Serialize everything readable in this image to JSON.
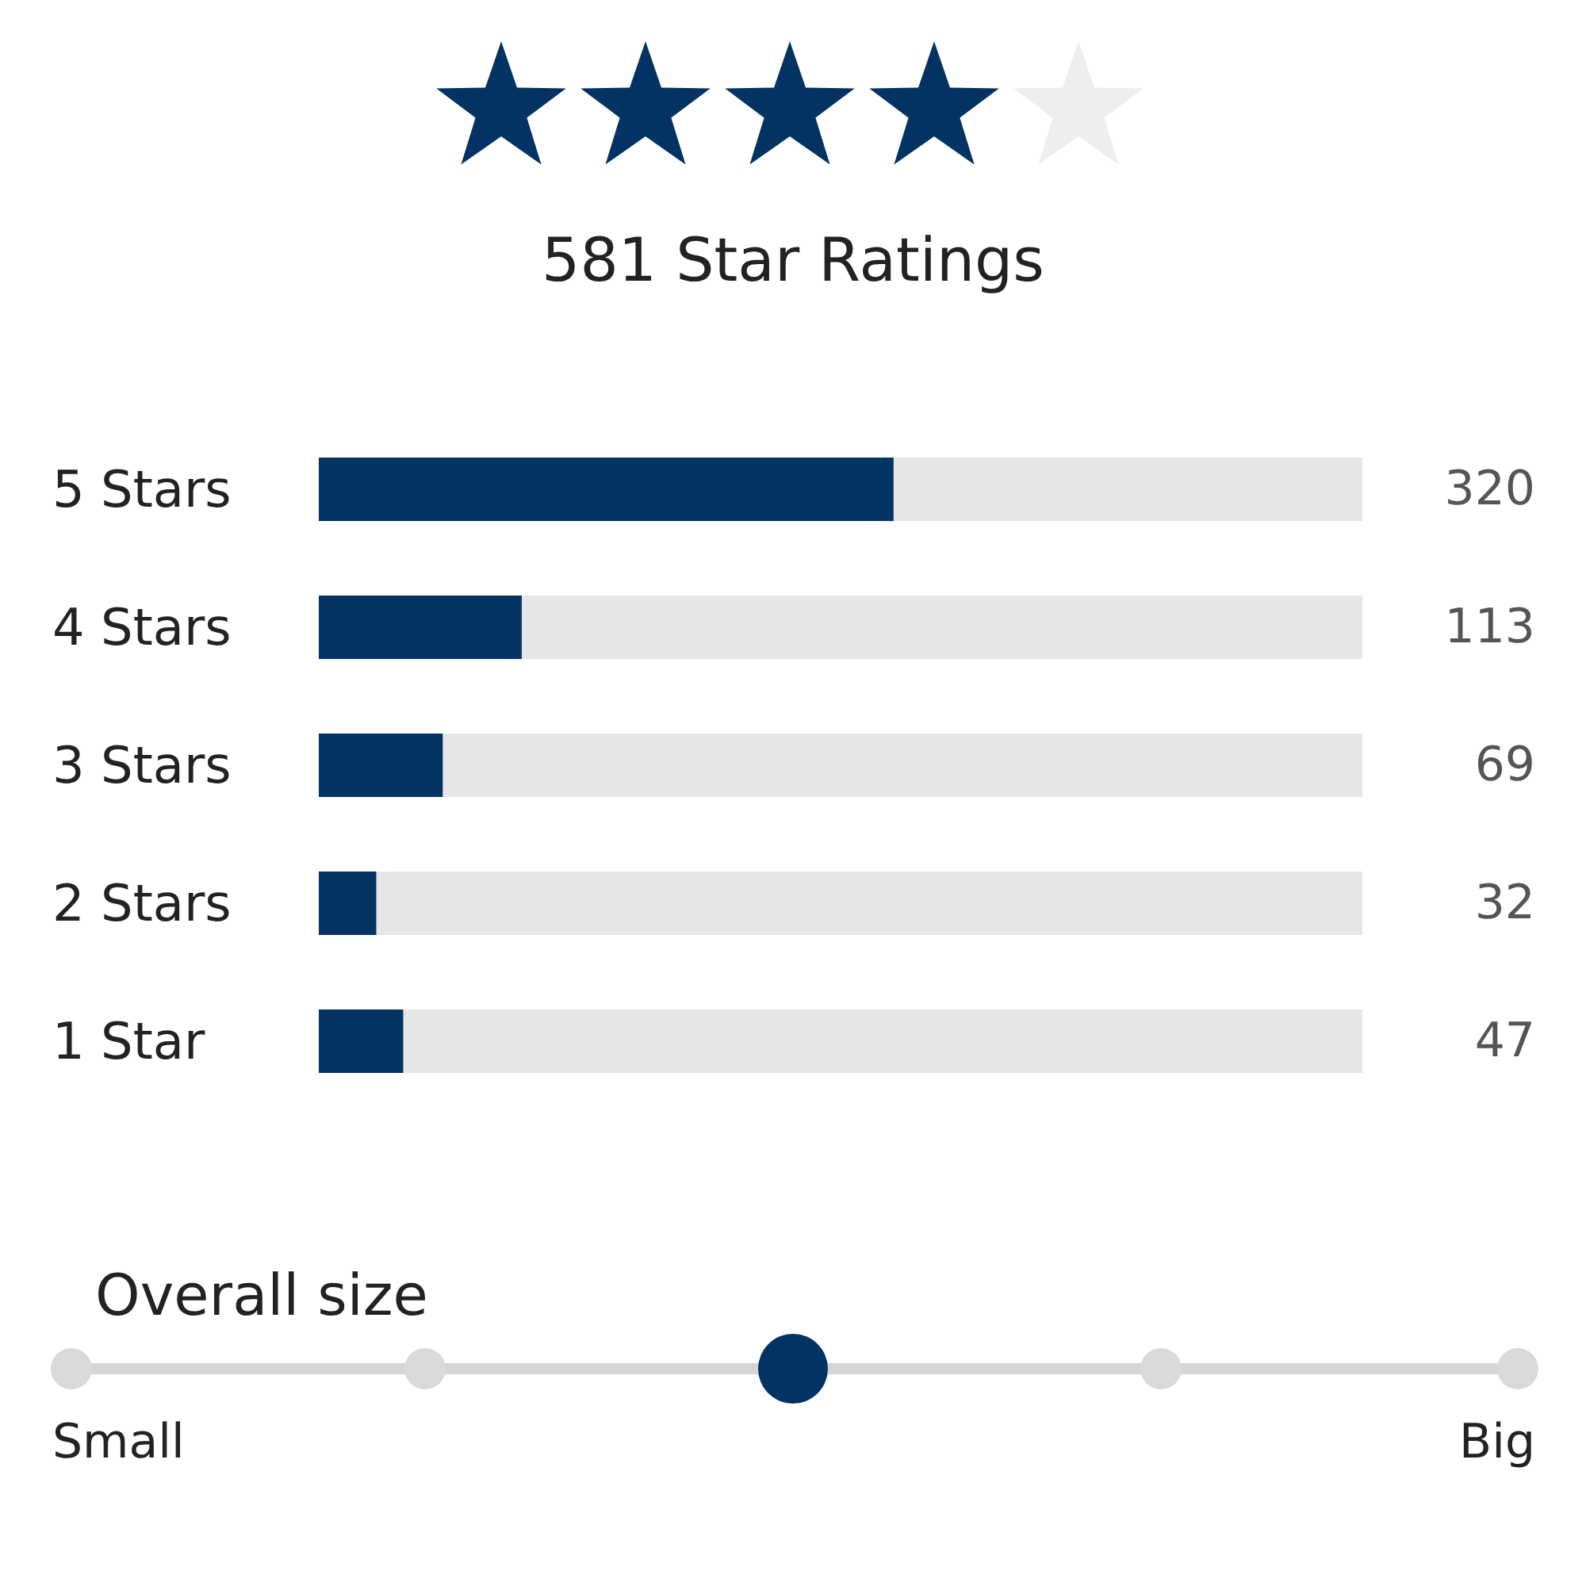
{
  "chart_data": {
    "type": "bar",
    "orientation": "horizontal",
    "title": "581 Star Ratings",
    "categories": [
      "5 Stars",
      "4 Stars",
      "3 Stars",
      "2 Stars",
      "1 Star"
    ],
    "values": [
      320,
      113,
      69,
      32,
      47
    ],
    "color": "#033363",
    "xlim": [
      0,
      581
    ],
    "tick_labels": "y",
    "data_labels": true,
    "annotations": [
      "Overall size",
      "Small",
      "Big"
    ]
  }
}
